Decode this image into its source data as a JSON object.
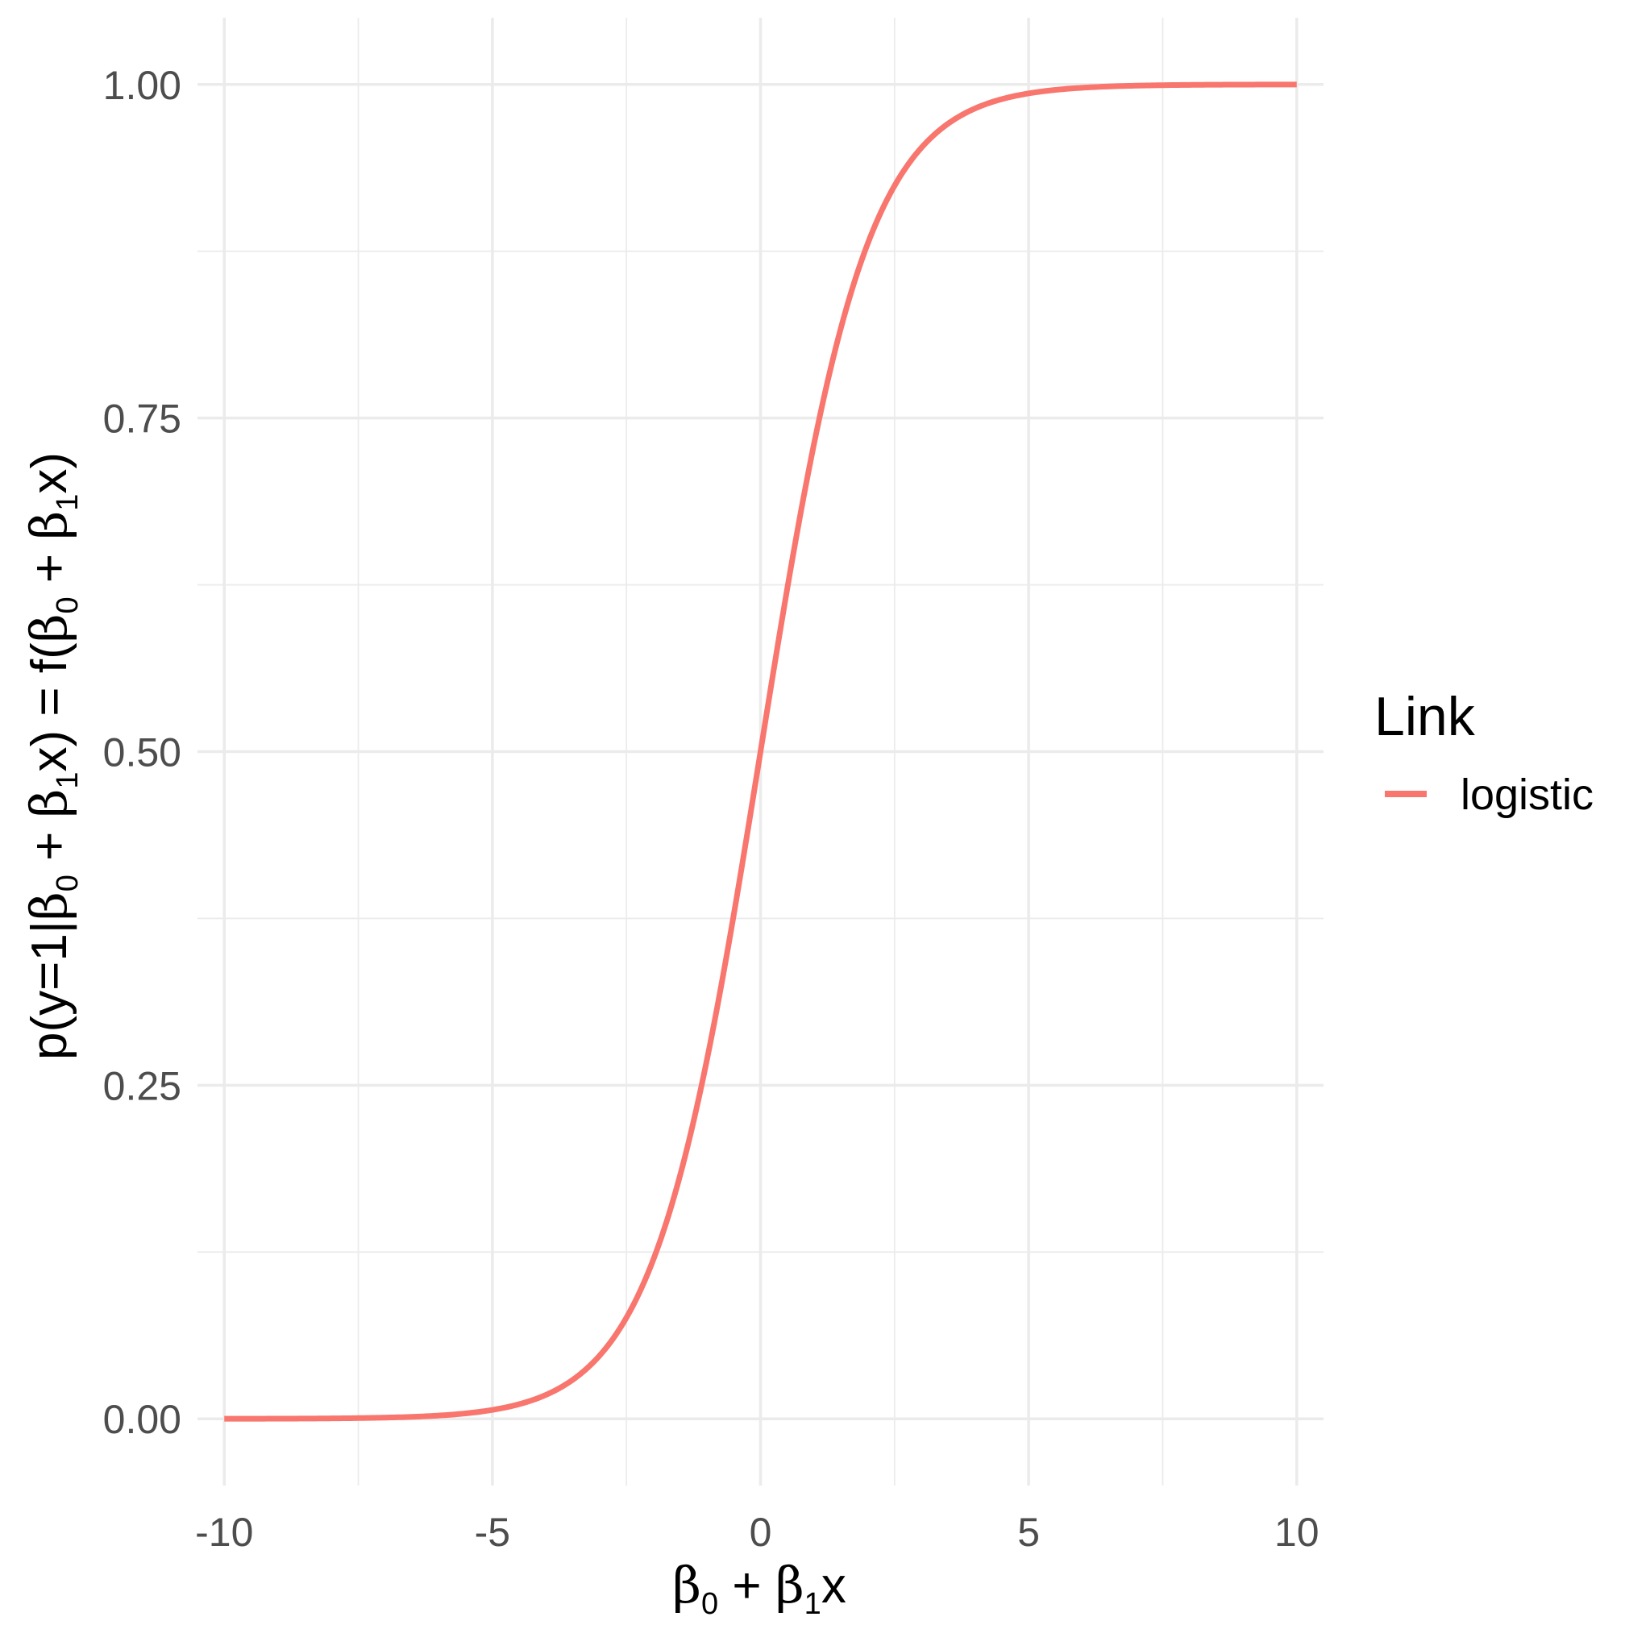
{
  "chart_data": {
    "type": "line",
    "function": "logistic",
    "x_range": [
      -10,
      10
    ],
    "xlim": [
      -10.5,
      10.5
    ],
    "ylim": [
      -0.05,
      1.05
    ],
    "x_ticks": [
      -10,
      -5,
      0,
      5,
      10
    ],
    "x_tick_labels": [
      "-10",
      "-5",
      "0",
      "5",
      "10"
    ],
    "y_ticks": [
      0,
      0.25,
      0.5,
      0.75,
      1
    ],
    "y_tick_labels": [
      "0.00",
      "0.25",
      "0.50",
      "0.75",
      "1.00"
    ],
    "xlabel": {
      "beta": "β",
      "sub0": "0",
      "plus": " + ",
      "sub1": "1",
      "var": "x"
    },
    "ylabel": {
      "p_open": "p(y=1|",
      "beta": "β",
      "sub0": "0",
      "plus": " + ",
      "sub1": "1",
      "x_close": "x) = f(",
      "x_end": "x)"
    },
    "grid": true,
    "legend": {
      "title": "Link",
      "position": "right",
      "entries": [
        "logistic"
      ]
    },
    "series": [
      {
        "name": "logistic",
        "color": "#f8766d"
      }
    ]
  }
}
